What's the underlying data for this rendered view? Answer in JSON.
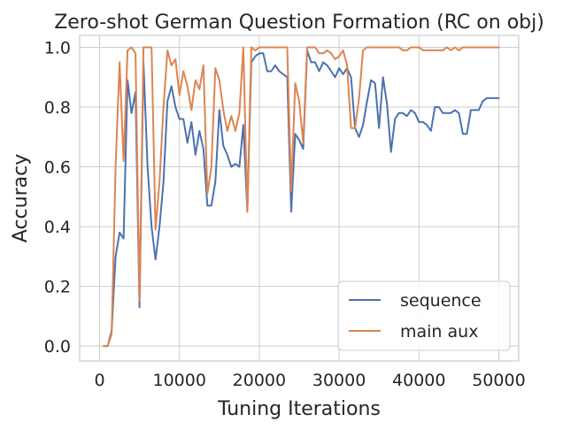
{
  "chart_data": {
    "type": "line",
    "title": "Zero-shot German Question Formation (RC on obj)",
    "xlabel": "Tuning Iterations",
    "ylabel": "Accuracy",
    "xlim": [
      -2500,
      52500
    ],
    "ylim": [
      -0.05,
      1.04
    ],
    "xticks": [
      0,
      10000,
      20000,
      30000,
      40000,
      50000
    ],
    "xtick_labels": [
      "0",
      "10000",
      "20000",
      "30000",
      "40000",
      "50000"
    ],
    "yticks": [
      0.0,
      0.2,
      0.4,
      0.6,
      0.8,
      1.0
    ],
    "ytick_labels": [
      "0.0",
      "0.2",
      "0.4",
      "0.6",
      "0.8",
      "1.0"
    ],
    "grid": true,
    "legend_position": "lower-right",
    "series": [
      {
        "name": "sequence",
        "color": "#4c72b0",
        "x": [
          500,
          1000,
          1500,
          2000,
          2500,
          3000,
          3500,
          4000,
          4500,
          5000,
          5500,
          6000,
          6500,
          7000,
          7500,
          8000,
          8500,
          9000,
          9500,
          10000,
          10500,
          11000,
          11500,
          12000,
          12500,
          13000,
          13500,
          14000,
          14500,
          15000,
          15500,
          16000,
          16500,
          17000,
          17500,
          18000,
          18500,
          19000,
          19500,
          20000,
          20500,
          21000,
          21500,
          22000,
          22500,
          23000,
          23500,
          24000,
          24500,
          25000,
          25500,
          26000,
          26500,
          27000,
          27500,
          28000,
          28500,
          29000,
          29500,
          30000,
          30500,
          31000,
          31500,
          32000,
          32500,
          33000,
          33500,
          34000,
          34500,
          35000,
          35500,
          36000,
          36500,
          37000,
          37500,
          38000,
          38500,
          39000,
          39500,
          40000,
          40500,
          41000,
          41500,
          42000,
          42500,
          43000,
          43500,
          44000,
          44500,
          45000,
          45500,
          46000,
          46500,
          47000,
          47500,
          48000,
          48500,
          49000,
          49500,
          50000
        ],
        "values": [
          0.0,
          0.0,
          0.05,
          0.3,
          0.38,
          0.36,
          0.89,
          0.78,
          0.85,
          0.13,
          0.95,
          0.6,
          0.4,
          0.29,
          0.4,
          0.55,
          0.82,
          0.87,
          0.8,
          0.76,
          0.76,
          0.68,
          0.75,
          0.64,
          0.72,
          0.66,
          0.47,
          0.47,
          0.55,
          0.79,
          0.67,
          0.64,
          0.6,
          0.61,
          0.6,
          0.74,
          0.45,
          0.95,
          0.97,
          0.98,
          0.98,
          0.92,
          0.92,
          0.94,
          0.92,
          0.91,
          0.9,
          0.45,
          0.71,
          0.69,
          0.66,
          0.99,
          0.95,
          0.95,
          0.92,
          0.95,
          0.94,
          0.92,
          0.9,
          0.93,
          0.91,
          0.93,
          0.9,
          0.73,
          0.7,
          0.74,
          0.82,
          0.89,
          0.88,
          0.73,
          0.9,
          0.81,
          0.65,
          0.76,
          0.78,
          0.78,
          0.77,
          0.79,
          0.78,
          0.75,
          0.75,
          0.74,
          0.72,
          0.8,
          0.8,
          0.78,
          0.78,
          0.78,
          0.79,
          0.78,
          0.71,
          0.71,
          0.79,
          0.79,
          0.79,
          0.82,
          0.83,
          0.83,
          0.83,
          0.83
        ]
      },
      {
        "name": "main aux",
        "color": "#dd8452",
        "x": [
          500,
          1000,
          1500,
          2000,
          2500,
          3000,
          3500,
          4000,
          4500,
          5000,
          5500,
          6000,
          6500,
          7000,
          7500,
          8000,
          8500,
          9000,
          9500,
          10000,
          10500,
          11000,
          11500,
          12000,
          12500,
          13000,
          13500,
          14000,
          14500,
          15000,
          15500,
          16000,
          16500,
          17000,
          17500,
          18000,
          18500,
          19000,
          19500,
          20000,
          20500,
          21000,
          21500,
          22000,
          22500,
          23000,
          23500,
          24000,
          24500,
          25000,
          25500,
          26000,
          26500,
          27000,
          27500,
          28000,
          28500,
          29000,
          29500,
          30000,
          30500,
          31000,
          31500,
          32000,
          32500,
          33000,
          33500,
          34000,
          34500,
          35000,
          35500,
          36000,
          36500,
          37000,
          37500,
          38000,
          38500,
          39000,
          39500,
          40000,
          40500,
          41000,
          41500,
          42000,
          42500,
          43000,
          43500,
          44000,
          44500,
          45000,
          45500,
          46000,
          46500,
          47000,
          47500,
          48000,
          48500,
          49000,
          49500,
          50000
        ],
        "values": [
          0.0,
          0.0,
          0.04,
          0.6,
          0.95,
          0.62,
          0.99,
          1.0,
          0.98,
          0.15,
          1.0,
          1.0,
          1.0,
          0.39,
          0.55,
          0.8,
          0.99,
          0.94,
          0.96,
          0.84,
          0.92,
          0.87,
          0.79,
          0.89,
          0.86,
          0.94,
          0.51,
          0.6,
          0.93,
          0.89,
          0.79,
          0.72,
          0.77,
          0.72,
          0.78,
          1.0,
          0.45,
          1.0,
          0.99,
          1.0,
          1.0,
          1.0,
          1.0,
          1.0,
          1.0,
          1.0,
          1.0,
          0.52,
          0.88,
          0.82,
          0.68,
          1.0,
          1.0,
          1.0,
          0.98,
          0.98,
          0.99,
          0.98,
          0.96,
          0.97,
          0.99,
          0.94,
          0.73,
          0.73,
          0.83,
          0.99,
          1.0,
          1.0,
          1.0,
          1.0,
          1.0,
          1.0,
          1.0,
          1.0,
          1.0,
          0.99,
          0.99,
          1.0,
          1.0,
          1.0,
          0.99,
          0.99,
          0.99,
          0.99,
          0.99,
          0.99,
          1.0,
          0.99,
          1.0,
          0.99,
          1.0,
          1.0,
          1.0,
          1.0,
          1.0,
          1.0,
          1.0,
          1.0,
          1.0,
          1.0
        ]
      }
    ]
  }
}
